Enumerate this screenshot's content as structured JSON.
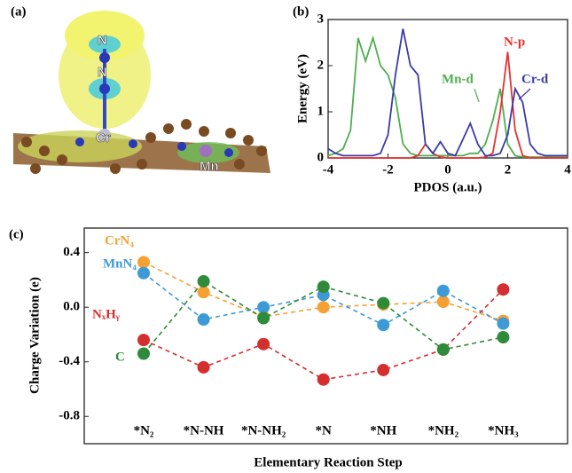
{
  "image_panel": {
    "label": "(a)",
    "atoms": [
      "N",
      "N",
      "Cr",
      "Mn"
    ]
  },
  "chart_data": [
    {
      "type": "line",
      "label": "(b)",
      "x_label": "PDOS (a.u.)",
      "y_label": "Energy (eV)",
      "x": [
        -4,
        -3.75,
        -3.5,
        -3.25,
        -3,
        -2.75,
        -2.5,
        -2.25,
        -2,
        -1.75,
        -1.5,
        -1.25,
        -1,
        -0.75,
        -0.5,
        -0.25,
        0,
        0.25,
        0.5,
        0.75,
        1,
        1.25,
        1.5,
        1.75,
        2,
        2.25,
        2.5,
        2.75,
        3,
        3.25,
        3.5,
        3.75,
        4
      ],
      "series": [
        {
          "name": "Mn-d",
          "color": "#4fae4f",
          "values": [
            0.05,
            0.1,
            0.2,
            0.6,
            2.6,
            2.1,
            2.6,
            2.0,
            1.8,
            1.3,
            0.3,
            0.1,
            0.05,
            0.05,
            0.05,
            0.05,
            0.05,
            0.05,
            0.05,
            0.1,
            0.1,
            0.3,
            0.8,
            1.5,
            0.3,
            0.05,
            0.02,
            0.02,
            0.02,
            0.02,
            0.02,
            0.02,
            0.02
          ]
        },
        {
          "name": "N-p",
          "color": "#e8312f",
          "values": [
            0,
            0,
            0,
            0,
            0,
            0,
            0,
            0,
            0,
            0,
            0,
            0,
            0.05,
            0.3,
            0.1,
            0.02,
            0,
            0,
            0,
            0,
            0,
            0.02,
            0.1,
            1.0,
            2.3,
            0.6,
            0.05,
            0,
            0,
            0,
            0,
            0,
            0
          ]
        },
        {
          "name": "Cr-d",
          "color": "#3a3aa8",
          "values": [
            0.2,
            0.1,
            0.05,
            0.05,
            0.05,
            0.05,
            0.05,
            0.1,
            0.5,
            1.8,
            2.8,
            2.0,
            1.8,
            0.3,
            0.1,
            0.35,
            0.1,
            0.05,
            0.4,
            0.75,
            0.3,
            0.05,
            0.05,
            0.1,
            0.5,
            1.5,
            1.2,
            0.3,
            0.1,
            0.05,
            0.05,
            0.05,
            0.05
          ]
        }
      ],
      "xlim": [
        -4,
        4
      ],
      "xticks": [
        -4,
        -2,
        0,
        2,
        4
      ],
      "ylim": [
        0,
        3
      ],
      "yticks": [
        0,
        1,
        2,
        3
      ],
      "markers": false,
      "dashed": false
    },
    {
      "type": "line",
      "label": "(c)",
      "x_label": "Elementary Reaction Step",
      "y_label": "Charge Variation (e)",
      "categories": [
        "*N₂",
        "*N-NH",
        "*N-NH₂",
        "*N",
        "*NH",
        "*NH₂",
        "*NH₃"
      ],
      "series": [
        {
          "name": "CrN₄",
          "color": "#f5a033",
          "values": [
            0.33,
            0.11,
            -0.07,
            0.0,
            0.02,
            0.04,
            -0.1
          ]
        },
        {
          "name": "MnN₄",
          "color": "#3d9ad6",
          "values": [
            0.25,
            -0.09,
            0.0,
            0.09,
            -0.13,
            0.12,
            -0.12
          ]
        },
        {
          "name": "NₓHᵧ",
          "color": "#d42e2e",
          "values": [
            -0.24,
            -0.44,
            -0.27,
            -0.53,
            -0.46,
            -0.31,
            0.13
          ]
        },
        {
          "name": "C",
          "color": "#2e8b3a",
          "values": [
            -0.34,
            0.19,
            -0.08,
            0.15,
            0.03,
            -0.31,
            -0.22
          ]
        }
      ],
      "ylim": [
        -1.0,
        0.58
      ],
      "yticks": [
        0.4,
        {
          "value": 0,
          "label": "0.0"
        },
        -0.4,
        -0.8
      ],
      "markers": true,
      "dashed": true
    }
  ]
}
